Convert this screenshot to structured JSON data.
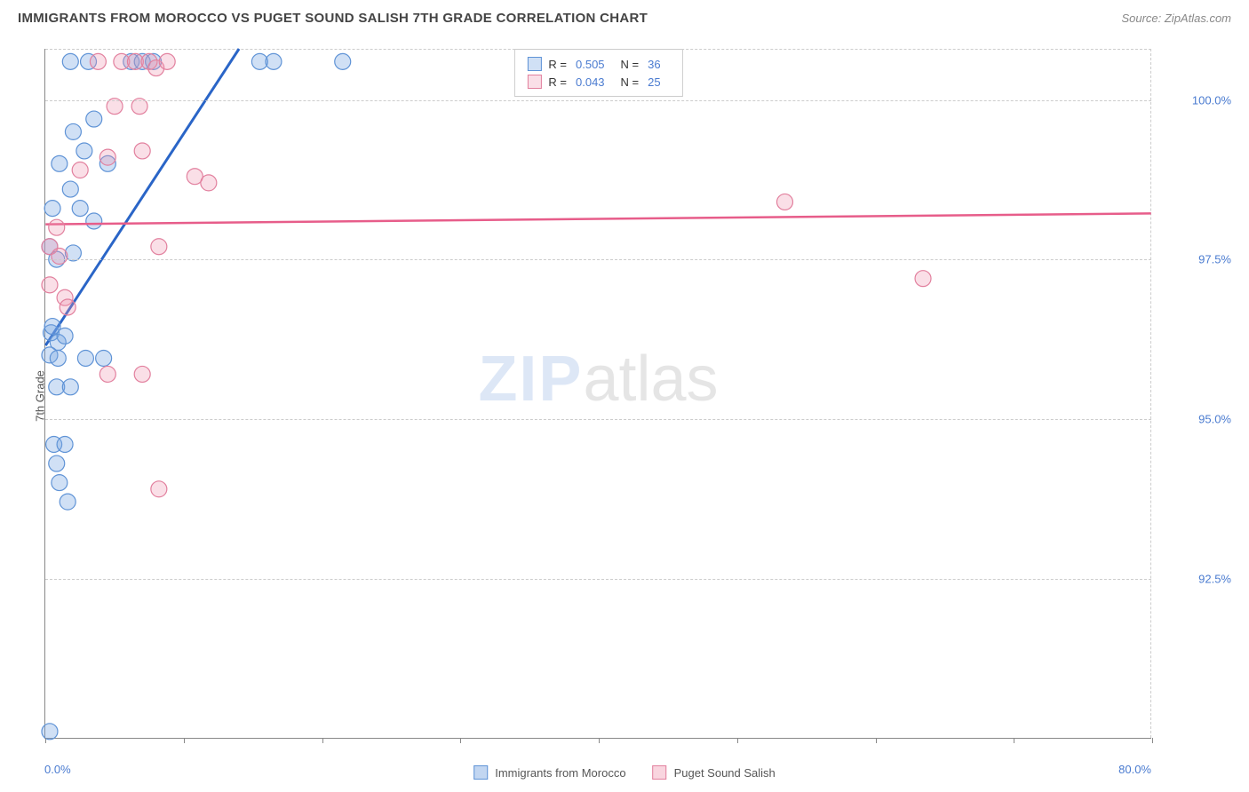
{
  "title": "IMMIGRANTS FROM MOROCCO VS PUGET SOUND SALISH 7TH GRADE CORRELATION CHART",
  "source": "Source: ZipAtlas.com",
  "ylabel": "7th Grade",
  "watermark": {
    "part1": "ZIP",
    "part2": "atlas"
  },
  "chart": {
    "type": "scatter",
    "xlim": [
      0,
      80
    ],
    "ylim": [
      90,
      100.8
    ],
    "x_ticks": [
      0,
      10,
      20,
      30,
      40,
      50,
      60,
      70,
      80
    ],
    "x_tick_labels": {
      "0": "0.0%",
      "80": "80.0%"
    },
    "y_gridlines": [
      92.5,
      95.0,
      97.5,
      100.0
    ],
    "y_tick_labels": {
      "92.5": "92.5%",
      "95.0": "95.0%",
      "97.5": "97.5%",
      "100.0": "100.0%"
    },
    "background_color": "#ffffff",
    "grid_color": "#cccccc",
    "axis_color": "#888888"
  },
  "series": [
    {
      "name": "Immigrants from Morocco",
      "color_fill": "rgba(120,165,225,0.35)",
      "color_stroke": "#5f93d6",
      "marker_radius": 9,
      "r_value": "0.505",
      "n_value": "36",
      "trend": {
        "x1": 0,
        "y1": 96.15,
        "x2": 14.0,
        "y2": 100.8,
        "color": "#2a65c7",
        "width": 3
      },
      "points": [
        [
          0.3,
          90.1
        ],
        [
          1.8,
          100.6
        ],
        [
          3.1,
          100.6
        ],
        [
          6.2,
          100.6
        ],
        [
          7.0,
          100.6
        ],
        [
          7.8,
          100.6
        ],
        [
          15.5,
          100.6
        ],
        [
          16.5,
          100.6
        ],
        [
          21.5,
          100.6
        ],
        [
          2.0,
          99.5
        ],
        [
          3.5,
          99.7
        ],
        [
          2.8,
          99.2
        ],
        [
          1.0,
          99.0
        ],
        [
          4.5,
          99.0
        ],
        [
          0.5,
          98.3
        ],
        [
          2.5,
          98.3
        ],
        [
          3.5,
          98.1
        ],
        [
          1.8,
          98.6
        ],
        [
          0.3,
          97.7
        ],
        [
          0.8,
          97.5
        ],
        [
          2.0,
          97.6
        ],
        [
          0.4,
          96.35
        ],
        [
          0.9,
          96.2
        ],
        [
          1.4,
          96.3
        ],
        [
          0.5,
          96.45
        ],
        [
          0.3,
          96.0
        ],
        [
          0.9,
          95.95
        ],
        [
          2.9,
          95.95
        ],
        [
          4.2,
          95.95
        ],
        [
          0.8,
          95.5
        ],
        [
          1.8,
          95.5
        ],
        [
          0.6,
          94.6
        ],
        [
          1.4,
          94.6
        ],
        [
          0.8,
          94.3
        ],
        [
          1.0,
          94.0
        ],
        [
          1.6,
          93.7
        ]
      ]
    },
    {
      "name": "Puget Sound Salish",
      "color_fill": "rgba(240,150,175,0.3)",
      "color_stroke": "#e2809e",
      "marker_radius": 9,
      "r_value": "0.043",
      "n_value": "25",
      "trend": {
        "x1": 0,
        "y1": 98.05,
        "x2": 80,
        "y2": 98.22,
        "color": "#e75d8a",
        "width": 2.5
      },
      "points": [
        [
          3.8,
          100.6
        ],
        [
          5.5,
          100.6
        ],
        [
          6.5,
          100.6
        ],
        [
          7.5,
          100.6
        ],
        [
          8.0,
          100.5
        ],
        [
          8.8,
          100.6
        ],
        [
          5.0,
          99.9
        ],
        [
          6.8,
          99.9
        ],
        [
          4.5,
          99.1
        ],
        [
          7.0,
          99.2
        ],
        [
          2.5,
          98.9
        ],
        [
          10.8,
          98.8
        ],
        [
          11.8,
          98.7
        ],
        [
          53.5,
          98.4
        ],
        [
          0.8,
          98.0
        ],
        [
          0.3,
          97.7
        ],
        [
          1.0,
          97.55
        ],
        [
          8.2,
          97.7
        ],
        [
          63.5,
          97.2
        ],
        [
          0.3,
          97.1
        ],
        [
          1.4,
          96.9
        ],
        [
          1.6,
          96.75
        ],
        [
          4.5,
          95.7
        ],
        [
          7.0,
          95.7
        ],
        [
          8.2,
          93.9
        ]
      ]
    }
  ],
  "legend_box": {
    "r_label": "R =",
    "n_label": "N ="
  },
  "bottom_legend": [
    {
      "label": "Immigrants from Morocco",
      "fill": "rgba(120,165,225,0.45)",
      "stroke": "#5f93d6"
    },
    {
      "label": "Puget Sound Salish",
      "fill": "rgba(240,150,175,0.4)",
      "stroke": "#e2809e"
    }
  ]
}
